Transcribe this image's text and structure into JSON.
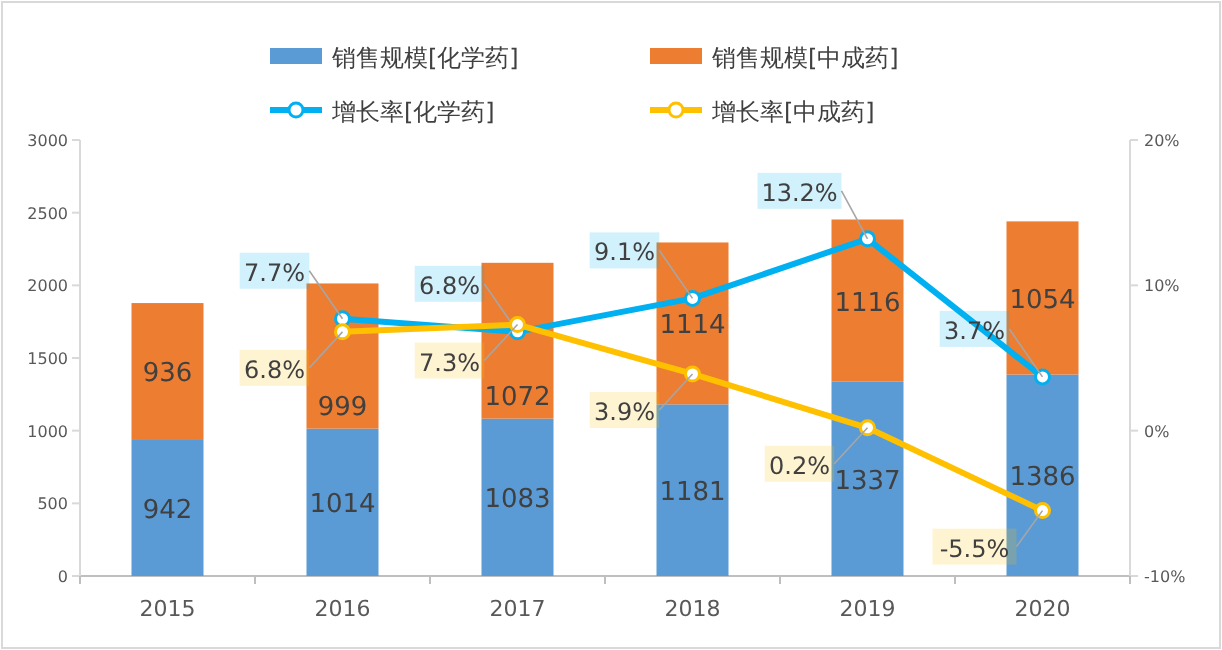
{
  "chart_data": {
    "type": "bar",
    "stacked": true,
    "legend": "top",
    "data_labels": true,
    "categories": [
      "2015",
      "2016",
      "2017",
      "2018",
      "2019",
      "2020"
    ],
    "ylim": [
      0,
      3000
    ],
    "yticks": [
      0,
      500,
      1000,
      1500,
      2000,
      2500,
      3000
    ],
    "y2lim": [
      -10,
      20
    ],
    "y2ticks": [
      {
        "value": -10,
        "label": "-10%"
      },
      {
        "value": 0,
        "label": "0%"
      },
      {
        "value": 10,
        "label": "10%"
      },
      {
        "value": 20,
        "label": "20%"
      }
    ],
    "series": [
      {
        "name": "销售规模[化学药]",
        "color": "#5b9bd5",
        "values": [
          942,
          1014,
          1083,
          1181,
          1337,
          1386
        ]
      },
      {
        "name": "销售规模[中成药]",
        "color": "#ed7d31",
        "values": [
          936,
          999,
          1072,
          1114,
          1116,
          1054
        ]
      },
      {
        "name": "增长率[化学药]",
        "type": "line",
        "axis": "y2",
        "marker": "circle",
        "color": "#00b0f0",
        "values": [
          null,
          7.7,
          6.8,
          9.1,
          13.2,
          3.7
        ],
        "value_labels": [
          null,
          "7.7%",
          "6.8%",
          "9.1%",
          "13.2%",
          "3.7%"
        ]
      },
      {
        "name": "增长率[中成药]",
        "type": "line",
        "axis": "y2",
        "marker": "circle",
        "color": "#ffc000",
        "values": [
          null,
          6.8,
          7.3,
          3.9,
          0.2,
          -5.5
        ],
        "value_labels": [
          null,
          "6.8%",
          "7.3%",
          "3.9%",
          "0.2%",
          "-5.5%"
        ]
      }
    ]
  }
}
